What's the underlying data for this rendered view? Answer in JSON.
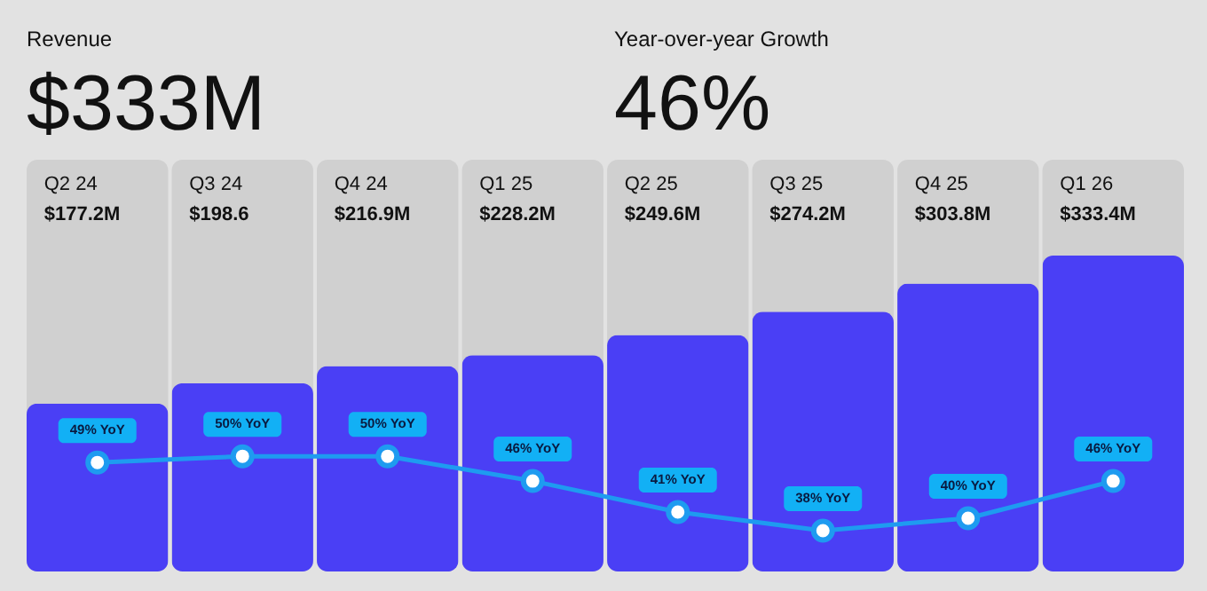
{
  "chart_data": {
    "type": "bar",
    "categories": [
      "Q2 24",
      "Q3 24",
      "Q4 24",
      "Q1 25",
      "Q2 25",
      "Q3 25",
      "Q4 25",
      "Q1 26"
    ],
    "series": [
      {
        "color": "#4a3ff5",
        "values": [
          177.2,
          198.6,
          216.9,
          228.2,
          249.6,
          274.2,
          303.8,
          333.4
        ],
        "value_labels": [
          "$177.2M",
          "$198.6",
          "$216.9M",
          "$228.2M",
          "$249.6M",
          "$274.2M",
          "$303.8M",
          "$333.4M"
        ]
      },
      {
        "type": "line",
        "axis": "y2",
        "color": "#1e9bf0",
        "marker": "circle",
        "values": [
          49,
          50,
          50,
          46,
          41,
          38,
          40,
          46
        ],
        "value_labels": [
          "49% YoY",
          "50% YoY",
          "50% YoY",
          "46% YoY",
          "41% YoY",
          "38% YoY",
          "40% YoY",
          "46% YoY"
        ]
      }
    ],
    "annotations": [
      "Revenue",
      "$333M",
      "Year-over-year Growth",
      "46%"
    ]
  }
}
